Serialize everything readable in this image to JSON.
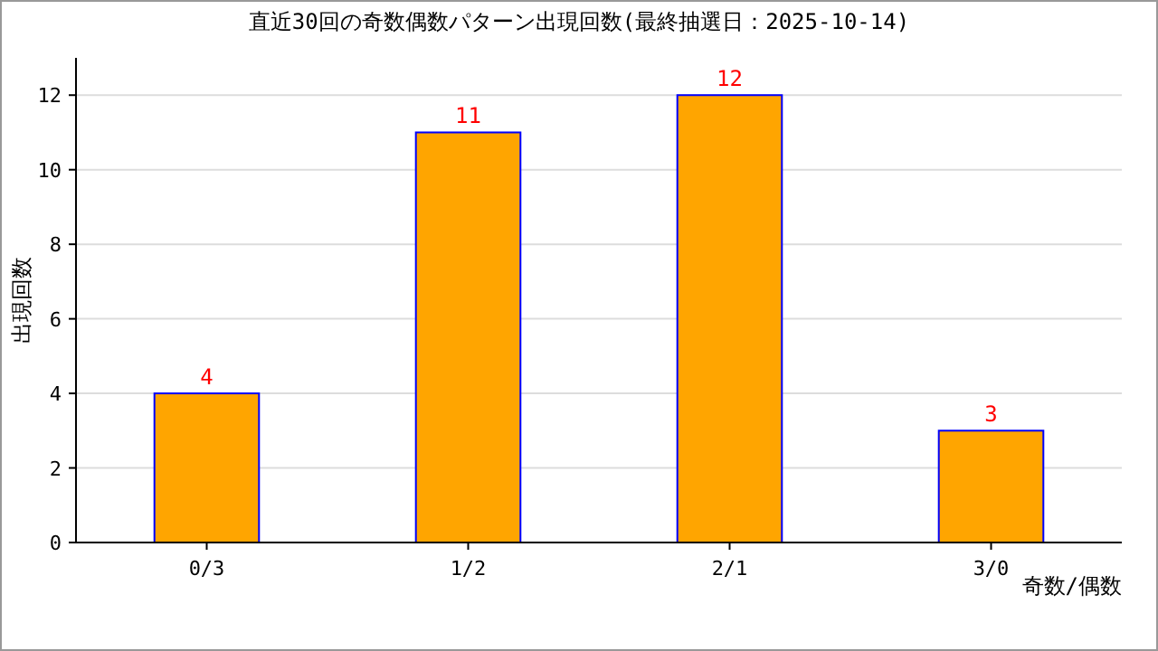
{
  "chart_data": {
    "type": "bar",
    "title": "直近30回の奇数偶数パターン出現回数(最終抽選日：2025-10-14)",
    "xlabel": "奇数/偶数",
    "ylabel": "出現回数",
    "categories": [
      "0/3",
      "1/2",
      "2/1",
      "3/0"
    ],
    "values": [
      4,
      11,
      12,
      3
    ],
    "color": "#ffa500",
    "data_labels": true,
    "ylim": [
      0,
      13
    ],
    "yticks": [
      0,
      2,
      4,
      6,
      8,
      10,
      12
    ],
    "grid": "y"
  }
}
